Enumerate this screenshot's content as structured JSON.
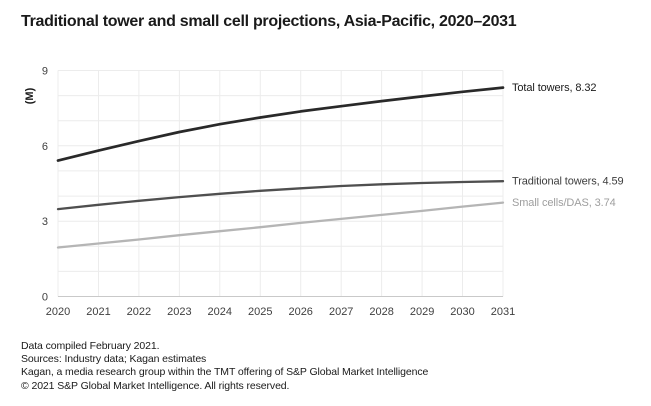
{
  "title": "Traditional tower and small cell projections, Asia-Pacific, 2020–2031",
  "chart_data": {
    "type": "line",
    "title": "Traditional tower and small cell projections, Asia-Pacific, 2020–2031",
    "x": [
      "2020",
      "2021",
      "2022",
      "2023",
      "2024",
      "2025",
      "2026",
      "2027",
      "2028",
      "2029",
      "2030",
      "2031"
    ],
    "series": [
      {
        "name": "Total towers",
        "end_label": "Total towers, 8.32",
        "values": [
          5.41,
          5.81,
          6.19,
          6.55,
          6.86,
          7.13,
          7.37,
          7.58,
          7.78,
          7.97,
          8.15,
          8.32
        ],
        "color": "#292929",
        "label_color": "#1a1a1a",
        "stroke_width": 2.7
      },
      {
        "name": "Traditional towers",
        "end_label": "Traditional towers, 4.59",
        "values": [
          3.48,
          3.65,
          3.81,
          3.96,
          4.09,
          4.21,
          4.31,
          4.4,
          4.47,
          4.52,
          4.56,
          4.59
        ],
        "color": "#4f4f4f",
        "label_color": "#3d3d3d",
        "stroke_width": 2.3
      },
      {
        "name": "Small cells/DAS",
        "end_label": "Small cells/DAS, 3.74",
        "values": [
          1.95,
          2.11,
          2.27,
          2.44,
          2.6,
          2.76,
          2.93,
          3.09,
          3.25,
          3.41,
          3.58,
          3.74
        ],
        "color": "#b5b5b5",
        "label_color": "#9e9e9e",
        "stroke_width": 2.3
      }
    ],
    "xlabel": "",
    "ylabel": "(M)",
    "ylim": [
      0,
      9
    ],
    "ytick_labels": [
      0,
      3,
      6,
      9
    ],
    "grid_step": 1,
    "grid": true,
    "legend_position": "right-end-labels",
    "grid_color": "#ececec",
    "axis_color": "#c9c9c9",
    "tick_color": "#404040"
  },
  "footer": {
    "compiled": "Data compiled February 2021.",
    "sources": "Sources: Industry data; Kagan estimates",
    "attribution": "Kagan, a media research group within the TMT offering of S&P Global Market Intelligence",
    "copyright": "© 2021 S&P Global Market Intelligence. All rights reserved."
  }
}
